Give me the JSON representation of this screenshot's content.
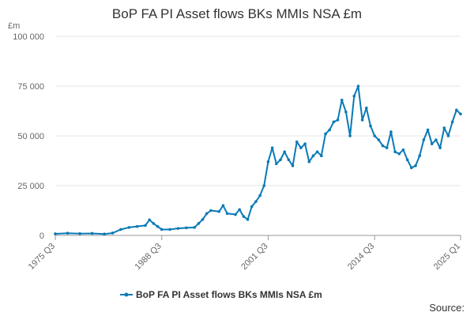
{
  "chart_data": {
    "type": "line",
    "title": "BoP FA PI Asset flows BKs MMIs NSA £m",
    "unit": "£m",
    "ylim": [
      0,
      100000
    ],
    "y_ticks": [
      0,
      25000,
      50000,
      75000,
      100000
    ],
    "y_tick_labels": [
      "0",
      "25 000",
      "50 000",
      "75 000",
      "100 000"
    ],
    "x_tick_labels": [
      "1975 Q3",
      "1988 Q3",
      "2001 Q3",
      "2014 Q3",
      "2025 Q1"
    ],
    "x_range": [
      "1975 Q3",
      "2025 Q1"
    ],
    "grid": "horizontal",
    "legend_position": "bottom",
    "series": [
      {
        "name": "BoP FA PI Asset flows BKs MMIs NSA £m",
        "color": "#0a7ab5",
        "points": [
          [
            "1975 Q3",
            800
          ],
          [
            "1977 Q1",
            1100
          ],
          [
            "1978 Q3",
            900
          ],
          [
            "1980 Q1",
            1000
          ],
          [
            "1981 Q3",
            700
          ],
          [
            "1982 Q3",
            1200
          ],
          [
            "1983 Q3",
            3000
          ],
          [
            "1984 Q3",
            4000
          ],
          [
            "1985 Q3",
            4500
          ],
          [
            "1986 Q3",
            5000
          ],
          [
            "1987 Q1",
            7800
          ],
          [
            "1987 Q3",
            6000
          ],
          [
            "1988 Q1",
            4500
          ],
          [
            "1988 Q3",
            3000
          ],
          [
            "1989 Q3",
            3000
          ],
          [
            "1990 Q3",
            3500
          ],
          [
            "1991 Q3",
            3800
          ],
          [
            "1992 Q3",
            4000
          ],
          [
            "1993 Q1",
            6000
          ],
          [
            "1993 Q3",
            8000
          ],
          [
            "1994 Q1",
            11000
          ],
          [
            "1994 Q3",
            12500
          ],
          [
            "1995 Q3",
            12000
          ],
          [
            "1996 Q1",
            15000
          ],
          [
            "1996 Q3",
            11000
          ],
          [
            "1997 Q3",
            10500
          ],
          [
            "1998 Q1",
            13000
          ],
          [
            "1998 Q3",
            9500
          ],
          [
            "1999 Q1",
            8000
          ],
          [
            "1999 Q3",
            14500
          ],
          [
            "2000 Q1",
            17000
          ],
          [
            "2000 Q3",
            20000
          ],
          [
            "2001 Q1",
            25000
          ],
          [
            "2001 Q3",
            37000
          ],
          [
            "2002 Q1",
            44000
          ],
          [
            "2002 Q3",
            36000
          ],
          [
            "2003 Q1",
            38000
          ],
          [
            "2003 Q3",
            42000
          ],
          [
            "2004 Q1",
            38000
          ],
          [
            "2004 Q3",
            35000
          ],
          [
            "2005 Q1",
            47000
          ],
          [
            "2005 Q3",
            44000
          ],
          [
            "2006 Q1",
            46000
          ],
          [
            "2006 Q3",
            37000
          ],
          [
            "2007 Q1",
            40000
          ],
          [
            "2007 Q3",
            42000
          ],
          [
            "2008 Q1",
            40000
          ],
          [
            "2008 Q3",
            51000
          ],
          [
            "2009 Q1",
            53000
          ],
          [
            "2009 Q3",
            57000
          ],
          [
            "2010 Q1",
            58000
          ],
          [
            "2010 Q3",
            68000
          ],
          [
            "2011 Q1",
            62000
          ],
          [
            "2011 Q3",
            50000
          ],
          [
            "2012 Q1",
            70000
          ],
          [
            "2012 Q3",
            75000
          ],
          [
            "2013 Q1",
            58000
          ],
          [
            "2013 Q3",
            64000
          ],
          [
            "2014 Q1",
            55000
          ],
          [
            "2014 Q3",
            50000
          ],
          [
            "2015 Q1",
            48000
          ],
          [
            "2015 Q3",
            45000
          ],
          [
            "2016 Q1",
            44000
          ],
          [
            "2016 Q3",
            52000
          ],
          [
            "2017 Q1",
            42000
          ],
          [
            "2017 Q3",
            41000
          ],
          [
            "2018 Q1",
            43000
          ],
          [
            "2018 Q3",
            38000
          ],
          [
            "2019 Q1",
            34000
          ],
          [
            "2019 Q3",
            35000
          ],
          [
            "2020 Q1",
            40000
          ],
          [
            "2020 Q3",
            48000
          ],
          [
            "2021 Q1",
            53000
          ],
          [
            "2021 Q3",
            46000
          ],
          [
            "2022 Q1",
            48000
          ],
          [
            "2022 Q3",
            44000
          ],
          [
            "2023 Q1",
            54000
          ],
          [
            "2023 Q3",
            50000
          ],
          [
            "2024 Q1",
            57000
          ],
          [
            "2024 Q3",
            63000
          ],
          [
            "2025 Q1",
            61000
          ]
        ]
      }
    ]
  },
  "footer": {
    "source_label": "Source:"
  }
}
